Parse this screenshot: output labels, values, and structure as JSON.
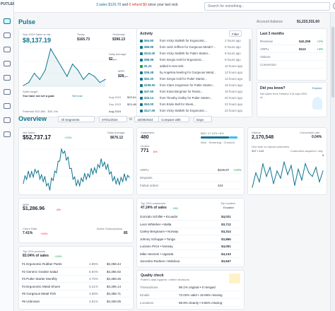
{
  "app": {
    "logo_text": "PUTLER"
  },
  "topbar": {
    "ann_prefix": "3 sales",
    "ann_sales_amt": "$126.70",
    "ann_and": "and",
    "ann_refunds": "0 refund",
    "ann_refund_amt": "$0",
    "ann_suffix": "since your last visit.",
    "search_placeholder": "Search for something..."
  },
  "pulse": {
    "title": "Pulse",
    "account_balance_label": "Account balance",
    "account_balance": "$1,223,331.60",
    "sales_card": {
      "period_label": "Sep 2024 Sales so far...",
      "amount": "$8,137.19",
      "today_label": "Today",
      "today_value": "$165.73",
      "yesterday_label": "Yesterday",
      "yesterday_value": "$396.13",
      "daily_avg_label": "Daily Average",
      "daily_avg_value": "$2,...",
      "mrr_label": "MRR",
      "mrr_value": "$28,..."
    },
    "sales_target": {
      "label": "Sales target",
      "text": "You have not set a goal.",
      "link": "Set now",
      "rows": [
        {
          "label": "Aug 2024",
          "value": "$25,614"
        },
        {
          "label": "Sep 2023",
          "value": "$29,458"
        },
        {
          "label": "Potential: $10,89k - $30.19k",
          "value": "Aug 2024"
        }
      ]
    },
    "activity": {
      "title": "Activity",
      "filter": "Filter",
      "items": [
        {
          "amount": "$94.90",
          "text": "from Vicky Stalleth for Ergonomic...",
          "time": "2 hours ago",
          "color": "#0e7490"
        },
        {
          "amount": "$86.95",
          "text": "from Josh Jeffrion for Gorgeous Metal F...",
          "time": "5 hours ago",
          "color": "#0e7490"
        },
        {
          "amount": "$115.00",
          "text": "from Vicky Stalleth for Putler Starter...",
          "time": "8 hours ago",
          "color": "#0e7490"
        },
        {
          "amount": "$98.99",
          "text": "from Sergio Holt for Ergonomic...",
          "time": "9 hours ago",
          "color": "#0e7490"
        },
        {
          "amount": "$1.21",
          "text": "added to test visit.",
          "time": "10 hours ago",
          "color": "#16a34a"
        },
        {
          "amount": "$36.48",
          "text": "by Angelina Neeling for Gorgeous Metal...",
          "time": "12 hours ago",
          "color": "#0e7490"
        },
        {
          "amount": "$62.20",
          "text": "from Sergio Holt for Putler Starter...",
          "time": "14 hours ago",
          "color": "#0e7490"
        },
        {
          "amount": "$108.00",
          "text": "from Clara Jorgensen for Putler Starter...",
          "time": "15 hours ago",
          "color": "#0e7490"
        },
        {
          "amount": "$47.50",
          "text": "from Kiara Bergman for Rustic...",
          "time": "18 hours ago",
          "color": "#0e7490"
        },
        {
          "amount": "$33.14",
          "text": "from Timothy Galley for Putler Starter...",
          "time": "20 hours ago",
          "color": "#0e7490"
        },
        {
          "amount": "$53.00",
          "text": "from Emile Bell for Sleek...",
          "time": "22 hours ago",
          "color": "#0e7490"
        },
        {
          "amount": "$117.09",
          "text": "from Vicky Stalleth for Ergonomic...",
          "time": "23 hours ago",
          "color": "#0e7490"
        }
      ]
    },
    "last3": {
      "title": "Last 3 months",
      "rows": [
        {
          "label": "Revenue",
          "value": "$42,259",
          "delta": "+1%",
          "delta_color": "#16a34a"
        },
        {
          "label": "ARPU",
          "value": "$112",
          "delta": "+4%",
          "delta_color": "#16a34a"
        },
        {
          "label": "Visitors",
          "value": "",
          "delta": "",
          "delta_color": "#16a34a"
        },
        {
          "label": "Conversion",
          "value": "",
          "delta": "",
          "delta_color": "#16a34a"
        }
      ]
    },
    "didyouknow": {
      "title": "Did you know?",
      "text": "Net sales from Helamo 5 at tops 55% of...",
      "link": "Explore"
    }
  },
  "overview": {
    "title": "Overview",
    "segment": "All Segments",
    "date_from": "07/01/2024",
    "date_to": "16/09/2024",
    "compare": "Compare with",
    "granularity": "Days",
    "net_sales": {
      "label": "Net Sales",
      "value": "$52,737.17",
      "delta": "+13%",
      "daily_avg_label": "Daily Average",
      "daily_avg_value": "$676.12"
    },
    "mrr": {
      "label": "MRR",
      "value": "$1,286.96",
      "delta": "-5%",
      "churn_label": "Churn Rate",
      "churn_value": "7.41%",
      "churn_delta": "+15%",
      "active_label": "Active Subscriptions",
      "active_value": "85"
    },
    "customers": {
      "label": "Customers",
      "value": "480",
      "orders_label": "Orders",
      "orders_value": "771",
      "orders_delta": "8%",
      "right_text": "$58 / 47.24% +8%",
      "legend": [
        "New",
        "Returning",
        "Churned"
      ],
      "rows": [
        {
          "label": "ARPU",
          "value": "$109.87",
          "delta": "+13%"
        },
        {
          "label": "Disputes",
          "value": "",
          "delta": ""
        },
        {
          "label": "Failed orders",
          "value": "344",
          "delta": ""
        }
      ]
    },
    "top_customers": {
      "title": "Top 20% customers",
      "value": "47.24% of sales",
      "delta": "+8%",
      "top_location_label": "Top location",
      "top_location": "Ecuador",
      "items": [
        {
          "name": "Gonzalo Schiller • Ecuador",
          "value": "$4,021"
        },
        {
          "name": "Leon Whiteher • Malta",
          "value": "$3,712"
        },
        {
          "name": "Carley Bergnaum • Norway",
          "value": "$4,314"
        },
        {
          "name": "Johnny Schuppe • Tonga",
          "value": "$3,865"
        },
        {
          "name": "Luciano Price • Norway",
          "value": "$4,051"
        },
        {
          "name": "Mike Henzeni • Uganda",
          "value": "$4,133"
        },
        {
          "name": "Jacombo Rudnes • Moldova",
          "value": "$3,947"
        }
      ]
    },
    "visitors": {
      "label": "Visitors",
      "value": "2,170,548",
      "conv_label": "Conversion rate",
      "conv_value": "0.04%",
      "repeat_label": "One time vs repeat customers",
      "repeat_value": "337 • 143",
      "acq_label": "Customers acquired / day",
      "acq_value": "5"
    },
    "top_products": {
      "title": "Top 20% products",
      "value": "83.04% of sales",
      "delta": "+18%",
      "items": [
        {
          "name": "#1 Ergonomic Rubber Pants",
          "pct": "4.85%",
          "value": "$2,258.44"
        },
        {
          "name": "#2 Generic Granite Salad",
          "pct": "6.94%",
          "value": "$4,365.02"
        },
        {
          "name": "#3 Putler Starter Monthly",
          "pct": "4.75%",
          "value": "$4,358.25"
        },
        {
          "name": "#4 Ergonomic Metal Shoes",
          "pct": "5.21%",
          "value": "$4,306.14"
        },
        {
          "name": "#5 Gorgeous Metal Fish",
          "pct": "4.68%",
          "value": "$4,355.71"
        },
        {
          "name": "#6 Unknown",
          "pct": "4.81%",
          "value": "$4,326.05"
        }
      ]
    },
    "quality": {
      "title": "Quality check",
      "subtitle": "Putler's data hygiene • better decisions",
      "rows": [
        {
          "label": "Transactions",
          "value": "99.1% original • 0 merged"
        },
        {
          "label": "Emails",
          "value": "72.02% valid • 16.65% missing"
        },
        {
          "label": "Locations",
          "value": "69.9% cleanly • 9.65% missing"
        }
      ]
    }
  },
  "chart_data": [
    {
      "type": "line",
      "title": "Sep 2024 Sales so far...",
      "x": [
        1,
        2,
        3,
        4,
        5,
        6,
        7,
        8,
        9,
        10,
        11,
        12,
        13,
        14,
        15,
        16
      ],
      "series": [
        {
          "values": [
            5,
            6,
            9,
            7,
            10,
            17,
            14,
            11,
            8,
            12,
            10,
            7,
            9,
            8,
            6,
            7
          ]
        }
      ]
    },
    {
      "type": "line",
      "title": "Net Sales",
      "x": [
        "2024-07-01",
        "2024-07-11",
        "2024-07-21",
        "2024-07-31",
        "2024-08-10",
        "2024-08-20",
        "2024-08-30",
        "2024-09-09",
        "2024-09-16"
      ],
      "series": [
        {
          "values": [
            700,
            900,
            500,
            1400,
            600,
            800,
            1100,
            650,
            750
          ]
        }
      ]
    },
    {
      "type": "line",
      "title": "Visitors",
      "series": [
        {
          "values": [
            22,
            30,
            25,
            35,
            28,
            33,
            24,
            31,
            27,
            36,
            29,
            34,
            23,
            32,
            26,
            35,
            30,
            28,
            33,
            25,
            31
          ]
        }
      ]
    }
  ]
}
